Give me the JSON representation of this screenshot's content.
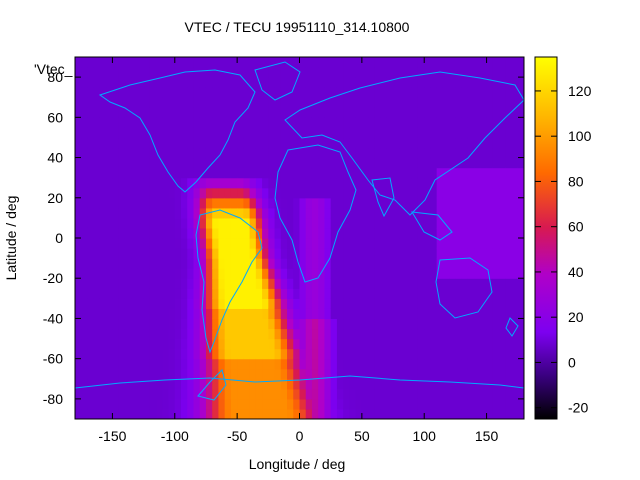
{
  "chart_data": {
    "type": "heatmap",
    "title": "VTEC / TECU 19951110_314.10800",
    "series_label": "'Vtec_",
    "xlabel": "Longitude / deg",
    "ylabel": "Latitude / deg",
    "xlim": [
      -180,
      180
    ],
    "ylim": [
      -90,
      90
    ],
    "x_ticks": [
      -150,
      -100,
      -50,
      0,
      50,
      100,
      150
    ],
    "y_ticks": [
      -80,
      -60,
      -40,
      -20,
      0,
      20,
      40,
      60,
      80
    ],
    "colorbar": {
      "range": [
        -25,
        135
      ],
      "ticks": [
        -20,
        0,
        20,
        40,
        60,
        80,
        100,
        120
      ],
      "palette": [
        "#000000",
        "#3a0080",
        "#7d00f0",
        "#b000c8",
        "#d81a50",
        "#ff6a00",
        "#ffb400",
        "#ffff00"
      ]
    },
    "background_value": 8,
    "anomaly": {
      "description": "Equatorial / South Atlantic TEC enhancement",
      "peak_value": 130,
      "core_lon_range": [
        -75,
        -20
      ],
      "core_lat_range": [
        -55,
        20
      ],
      "secondary_patch": {
        "lon_range": [
          110,
          180
        ],
        "lat_range": [
          -20,
          35
        ],
        "value": 20
      }
    },
    "overlay": "coastlines",
    "grid": false,
    "legend_position": "top-left"
  }
}
